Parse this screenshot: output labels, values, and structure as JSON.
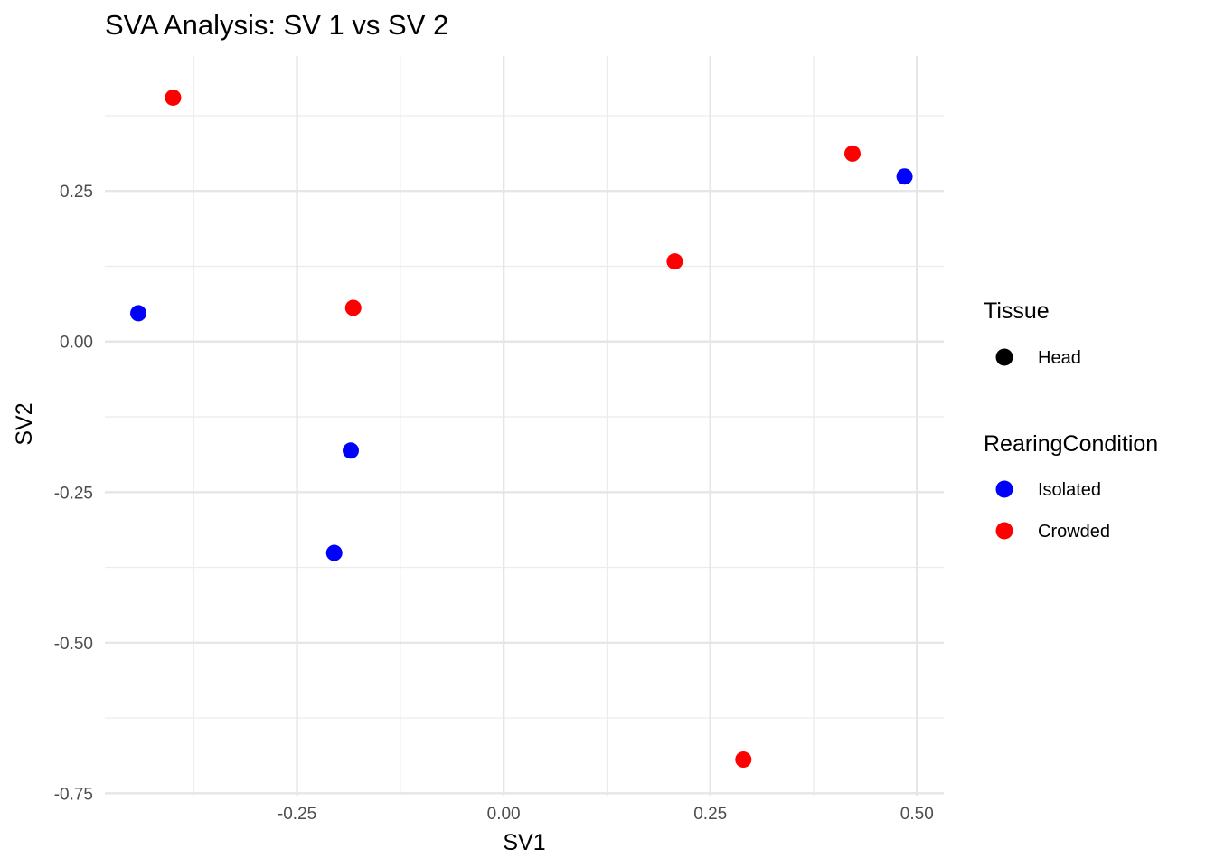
{
  "chart_data": {
    "type": "scatter",
    "title": "SVA Analysis: SV 1  vs SV 2",
    "xlabel": "SV1",
    "ylabel": "SV2",
    "xlim": [
      -0.4825,
      0.5325
    ],
    "ylim": [
      -0.754,
      0.474
    ],
    "x_ticks": [
      -0.25,
      0.0,
      0.25,
      0.5
    ],
    "x_tick_labels": [
      "-0.25",
      "0.00",
      "0.25",
      "0.50"
    ],
    "y_ticks": [
      0.25,
      0.0,
      -0.25,
      -0.5,
      -0.75
    ],
    "y_tick_labels": [
      "0.25",
      "0.00",
      "-0.25",
      "-0.50",
      "-0.75"
    ],
    "grid": true,
    "legend_position": "right",
    "colors": {
      "Isolated": "#0000ff",
      "Crowded": "#ff0000"
    },
    "series": [
      {
        "name": "Isolated",
        "x": [
          -0.442,
          -0.185,
          -0.205,
          0.485
        ],
        "y": [
          0.047,
          -0.181,
          -0.351,
          0.274
        ]
      },
      {
        "name": "Crowded",
        "x": [
          -0.4,
          -0.182,
          0.207,
          0.422,
          0.29
        ],
        "y": [
          0.405,
          0.056,
          0.133,
          0.312,
          -0.694
        ]
      }
    ],
    "legends": [
      {
        "title": "Tissue",
        "items": [
          {
            "label": "Head",
            "color": "#000000"
          }
        ]
      },
      {
        "title": "RearingCondition",
        "items": [
          {
            "label": "Isolated",
            "color": "#0000ff"
          },
          {
            "label": "Crowded",
            "color": "#ff0000"
          }
        ]
      }
    ]
  }
}
